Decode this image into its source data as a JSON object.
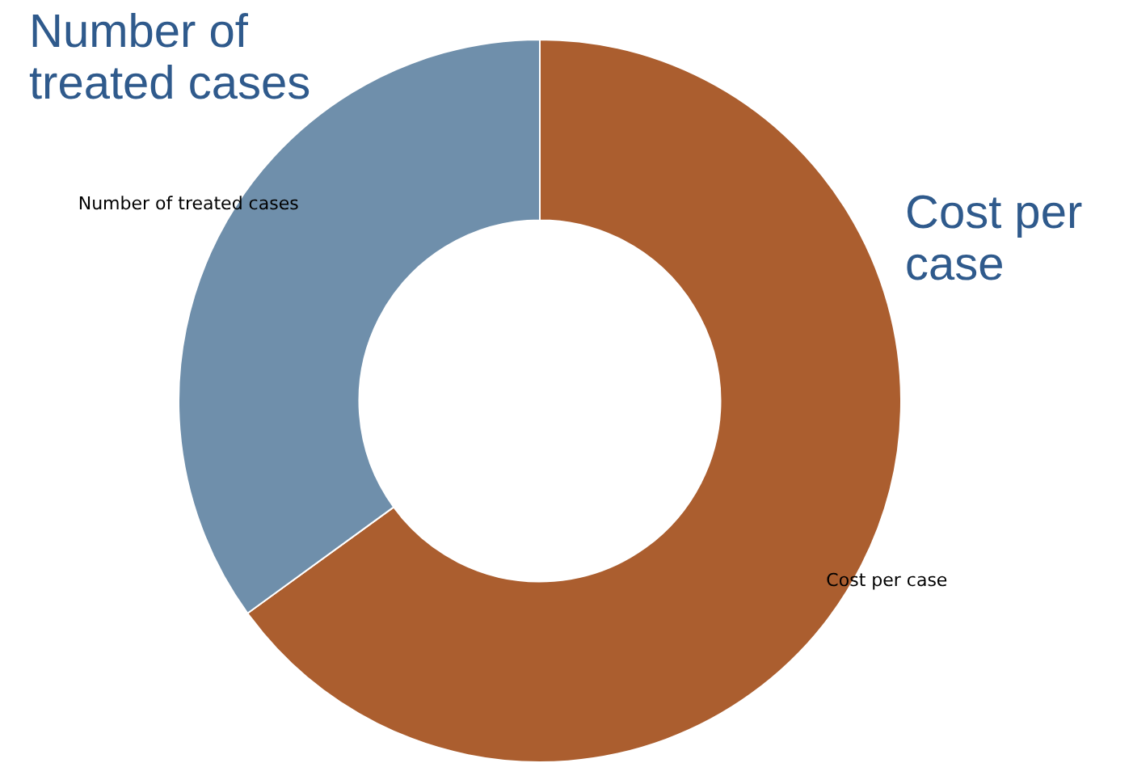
{
  "chart_data": {
    "type": "donut",
    "categories": [
      "Cost per case",
      "Number of treated cases"
    ],
    "values": [
      65,
      35
    ],
    "colors": [
      "#ab5e2f",
      "#6f8fab"
    ],
    "annotations": [
      "Number of treated cases",
      "Cost per case"
    ]
  }
}
